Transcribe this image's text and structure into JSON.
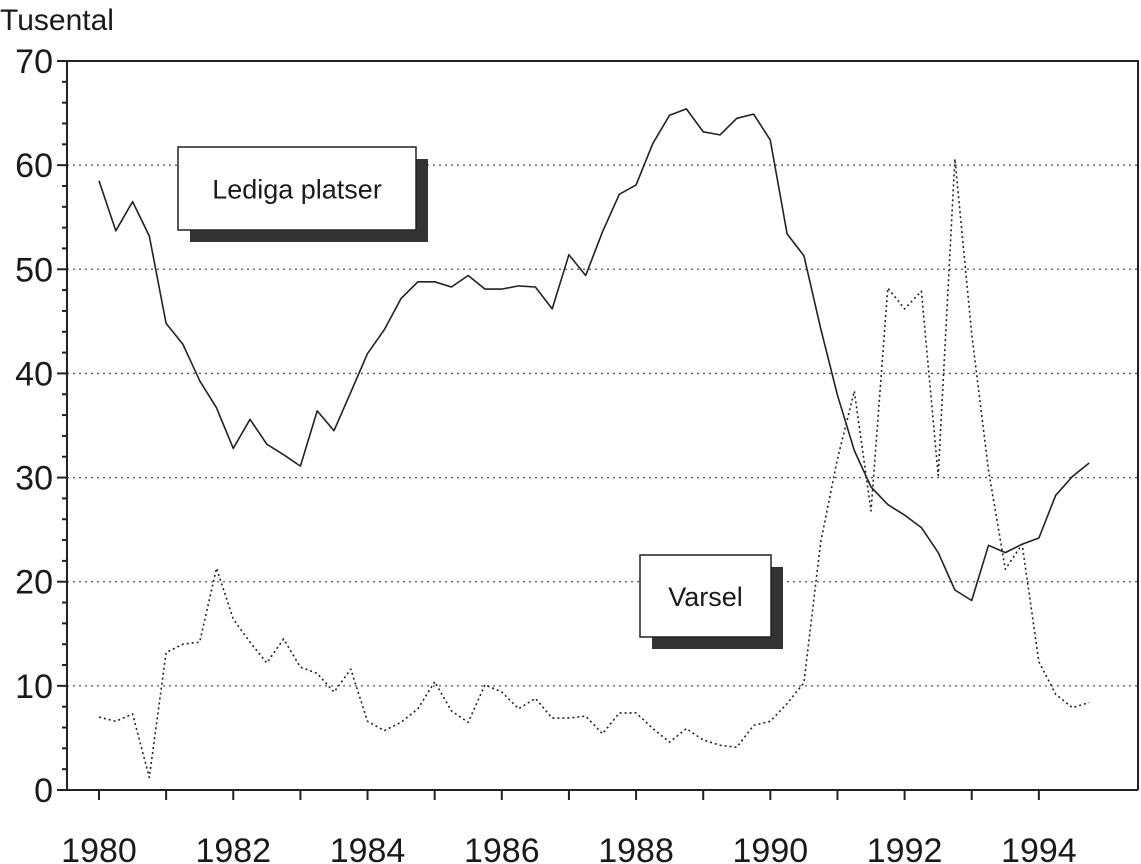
{
  "chart_data": {
    "type": "line",
    "ylabel": "Tusental",
    "ylim": [
      0,
      70
    ],
    "yticks": [
      "0",
      "10",
      "20",
      "30",
      "40",
      "50",
      "60",
      "70"
    ],
    "xlim": [
      1980,
      1995
    ],
    "xticks": [
      "1980",
      "1982",
      "1984",
      "1986",
      "1988",
      "1990",
      "1992",
      "1994"
    ],
    "grid": "horizontal dotted",
    "series": [
      {
        "name": "Lediga platser",
        "style": "solid",
        "x": [
          1980.0,
          1980.25,
          1980.5,
          1980.75,
          1981.0,
          1981.25,
          1981.5,
          1981.75,
          1982.0,
          1982.25,
          1982.5,
          1982.75,
          1983.0,
          1983.25,
          1983.5,
          1983.75,
          1984.0,
          1984.25,
          1984.5,
          1984.75,
          1985.0,
          1985.25,
          1985.5,
          1985.75,
          1986.0,
          1986.25,
          1986.5,
          1986.75,
          1987.0,
          1987.25,
          1987.5,
          1987.75,
          1988.0,
          1988.25,
          1988.5,
          1988.75,
          1989.0,
          1989.25,
          1989.5,
          1989.75,
          1990.0,
          1990.25,
          1990.5,
          1990.75,
          1991.0,
          1991.25,
          1991.5,
          1991.75,
          1992.0,
          1992.25,
          1992.5,
          1992.75,
          1993.0,
          1993.25,
          1993.5,
          1993.75,
          1994.0,
          1994.25,
          1994.5,
          1994.75
        ],
        "values": [
          58.5,
          53.7,
          56.5,
          53.2,
          44.8,
          42.8,
          39.3,
          36.7,
          32.8,
          35.6,
          33.2,
          32.2,
          31.1,
          36.4,
          34.5,
          38.2,
          41.9,
          44.2,
          47.2,
          48.8,
          48.8,
          48.3,
          49.4,
          48.1,
          48.1,
          48.4,
          48.3,
          46.2,
          51.4,
          49.4,
          53.6,
          57.2,
          58.1,
          62.1,
          64.8,
          65.4,
          63.2,
          62.9,
          64.5,
          64.9,
          62.4,
          53.4,
          51.3,
          44.3,
          37.9,
          32.6,
          29.1,
          27.4,
          26.4,
          25.2,
          22.8,
          19.2,
          18.2,
          23.5,
          22.8,
          23.6,
          24.2,
          28.3,
          30.1,
          31.4
        ]
      },
      {
        "name": "Varsel",
        "style": "dotted",
        "x": [
          1980.0,
          1980.25,
          1980.5,
          1980.75,
          1981.0,
          1981.25,
          1981.5,
          1981.75,
          1982.0,
          1982.25,
          1982.5,
          1982.75,
          1983.0,
          1983.25,
          1983.5,
          1983.75,
          1984.0,
          1984.25,
          1984.5,
          1984.75,
          1985.0,
          1985.25,
          1985.5,
          1985.75,
          1986.0,
          1986.25,
          1986.5,
          1986.75,
          1987.0,
          1987.25,
          1987.5,
          1987.75,
          1988.0,
          1988.25,
          1988.5,
          1988.75,
          1989.0,
          1989.25,
          1989.5,
          1989.75,
          1990.0,
          1990.25,
          1990.5,
          1990.75,
          1991.0,
          1991.25,
          1991.5,
          1991.75,
          1992.0,
          1992.25,
          1992.5,
          1992.75,
          1993.0,
          1993.25,
          1993.5,
          1993.75,
          1994.0,
          1994.25,
          1994.5,
          1994.75
        ],
        "values": [
          7.0,
          6.6,
          7.3,
          1.2,
          13.2,
          14.0,
          14.2,
          21.3,
          16.4,
          14.2,
          12.2,
          14.5,
          11.8,
          11.2,
          9.4,
          11.6,
          6.6,
          5.7,
          6.5,
          7.8,
          10.4,
          7.6,
          6.5,
          10.1,
          9.4,
          7.8,
          8.8,
          6.9,
          6.9,
          7.1,
          5.4,
          7.4,
          7.4,
          5.9,
          4.6,
          5.9,
          4.8,
          4.3,
          4.1,
          6.2,
          6.6,
          8.3,
          10.3,
          23.8,
          31.8,
          38.3,
          26.8,
          48.2,
          46.2,
          47.9,
          30.2,
          60.6,
          43.8,
          30.7,
          21.2,
          23.6,
          12.3,
          9.2,
          7.9,
          8.4
        ]
      }
    ],
    "annotations": [
      {
        "text": "Lediga platser",
        "series": 0
      },
      {
        "text": "Varsel",
        "series": 1
      }
    ]
  }
}
